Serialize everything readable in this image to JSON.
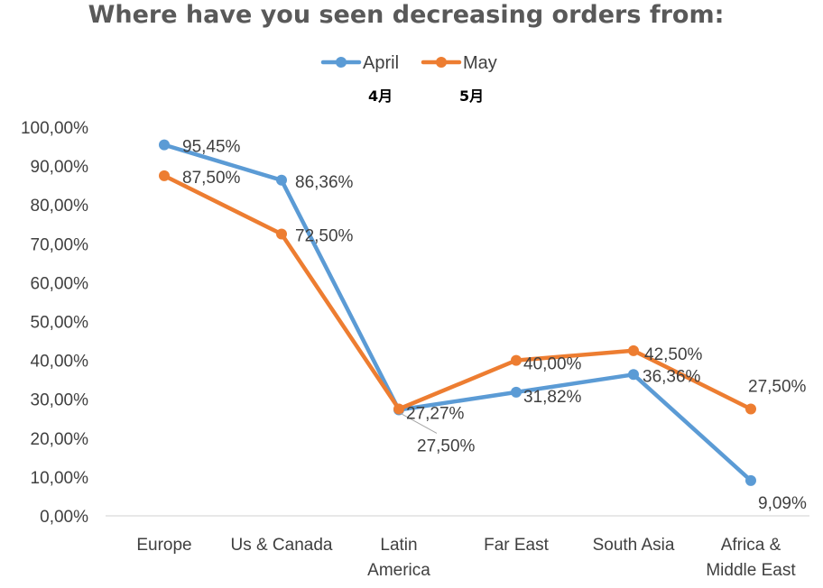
{
  "chart_data": {
    "type": "line",
    "title": "Where have you seen decreasing orders from:",
    "categories": [
      [
        "Europe"
      ],
      [
        "Us & Canada"
      ],
      [
        "Latin",
        "America"
      ],
      [
        "Far East"
      ],
      [
        "South Asia"
      ],
      [
        "Africa &",
        "Middle East"
      ]
    ],
    "series": [
      {
        "name": "April",
        "color": "#5B9BD5",
        "values": [
          95.45,
          86.36,
          27.27,
          31.82,
          36.36,
          9.09
        ],
        "labels": [
          "95,45%",
          "86,36%",
          "27,27%",
          "31,82%",
          "36,36%",
          "9,09%"
        ]
      },
      {
        "name": "May",
        "color": "#ED7D31",
        "values": [
          87.5,
          72.5,
          27.5,
          40.0,
          42.5,
          27.5
        ],
        "labels": [
          "87,50%",
          "72,50%",
          "27,50%",
          "40,00%",
          "42,50%",
          "27,50%"
        ]
      }
    ],
    "legend_sublabels": [
      "4月",
      "5月"
    ],
    "legend_position": "top",
    "ylim": [
      0,
      100
    ],
    "yticks": [
      0,
      10,
      20,
      30,
      40,
      50,
      60,
      70,
      80,
      90,
      100
    ],
    "ytick_labels": [
      "0,00%",
      "10,00%",
      "20,00%",
      "30,00%",
      "40,00%",
      "50,00%",
      "60,00%",
      "70,00%",
      "80,00%",
      "90,00%",
      "100,00%"
    ],
    "grid": false
  }
}
